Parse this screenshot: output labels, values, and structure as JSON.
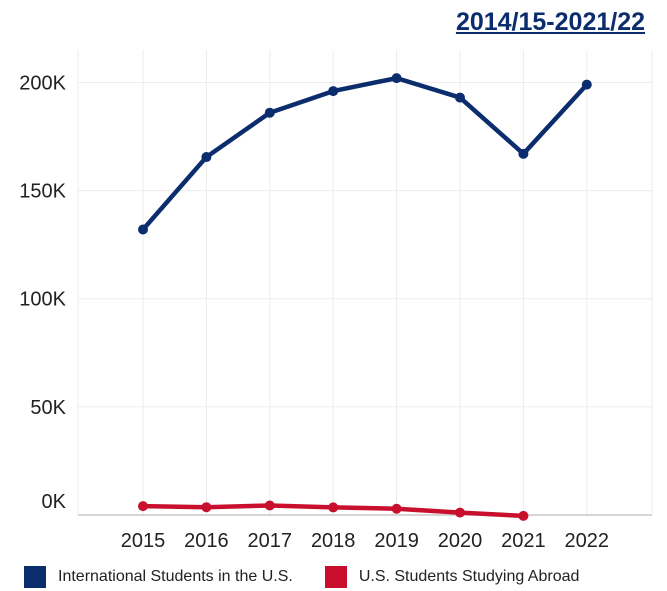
{
  "header": {
    "period_link": "2014/15-2021/22"
  },
  "chart_data": {
    "type": "line",
    "title": "",
    "xlabel": "",
    "ylabel": "",
    "x": [
      "2015",
      "2016",
      "2017",
      "2018",
      "2019",
      "2020",
      "2021",
      "2022"
    ],
    "y_ticks": [
      "0K",
      "50K",
      "100K",
      "150K",
      "200K"
    ],
    "y_tick_values": [
      0,
      50000,
      100000,
      150000,
      200000
    ],
    "ylim": [
      0,
      215000
    ],
    "grid": true,
    "legend_position": "bottom",
    "series": [
      {
        "name": "International Students in the U.S.",
        "color": "#0b2d6e",
        "values": [
          132000,
          165500,
          186000,
          196000,
          202000,
          193000,
          167000,
          199000
        ]
      },
      {
        "name": "U.S. Students Studying Abroad",
        "color": "#c8102e",
        "values": [
          4100,
          3600,
          4400,
          3500,
          2900,
          1100,
          -400,
          null
        ]
      }
    ]
  }
}
